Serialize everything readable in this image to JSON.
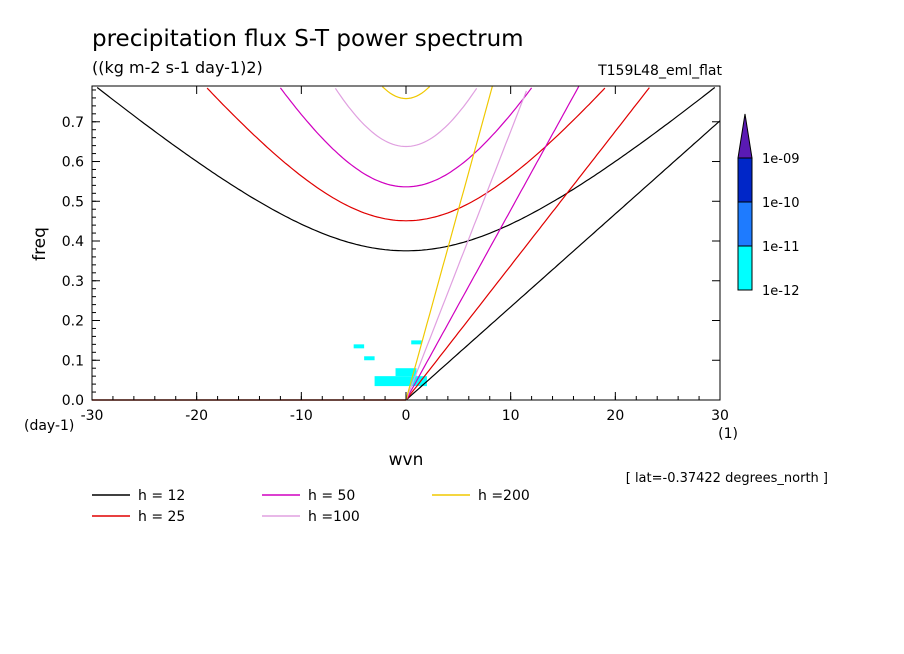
{
  "chart_data": {
    "type": "line",
    "title": "precipitation flux S-T power spectrum",
    "units_label": "((kg m-2 s-1 day-1)2)",
    "run_label": "T159L48_eml_flat",
    "xlabel": "wvn",
    "ylabel": "freq",
    "x_unit": "(1)",
    "y_unit": "(day-1)",
    "xlim": [
      -30,
      30
    ],
    "ylim": [
      0,
      0.79
    ],
    "xticks": [
      -30,
      -20,
      -10,
      0,
      10,
      20,
      30
    ],
    "yticks": [
      0.0,
      0.1,
      0.2,
      0.3,
      0.4,
      0.5,
      0.6,
      0.7
    ],
    "xticklabels": [
      "-30",
      "-20",
      "-10",
      "0",
      "10",
      "20",
      "30"
    ],
    "yticklabels": [
      "0.0",
      "0.1",
      "0.2",
      "0.3",
      "0.4",
      "0.5",
      "0.6",
      "0.7"
    ],
    "footnote": "[ lat=-0.37422 degrees_north ]",
    "colorbar": {
      "levels": [
        "1e-12",
        "1e-11",
        "1e-10",
        "1e-09"
      ],
      "colors": [
        "#00ffff",
        "#1e7bff",
        "#0026c8",
        "#5a1ab4"
      ]
    },
    "series": [
      {
        "name": "h = 12",
        "h": 12,
        "color": "#000000"
      },
      {
        "name": "h = 25",
        "h": 25,
        "color": "#e00000"
      },
      {
        "name": "h = 50",
        "h": 50,
        "color": "#d000c0"
      },
      {
        "name": "h =100",
        "h": 100,
        "color": "#e0a0e0"
      },
      {
        "name": "h =200",
        "h": 200,
        "color": "#f0c800"
      }
    ],
    "spectrum_blobs": [
      {
        "x": [
          -3,
          2
        ],
        "y": [
          0.035,
          0.06
        ]
      },
      {
        "x": [
          -1,
          1
        ],
        "y": [
          0.06,
          0.08
        ]
      },
      {
        "x": [
          -5,
          -4
        ],
        "y": [
          0.13,
          0.14
        ]
      },
      {
        "x": [
          0.5,
          1.5
        ],
        "y": [
          0.14,
          0.15
        ]
      },
      {
        "x": [
          -4,
          -3
        ],
        "y": [
          0.1,
          0.11
        ]
      }
    ],
    "grid": false,
    "legend_position": "bottom"
  }
}
